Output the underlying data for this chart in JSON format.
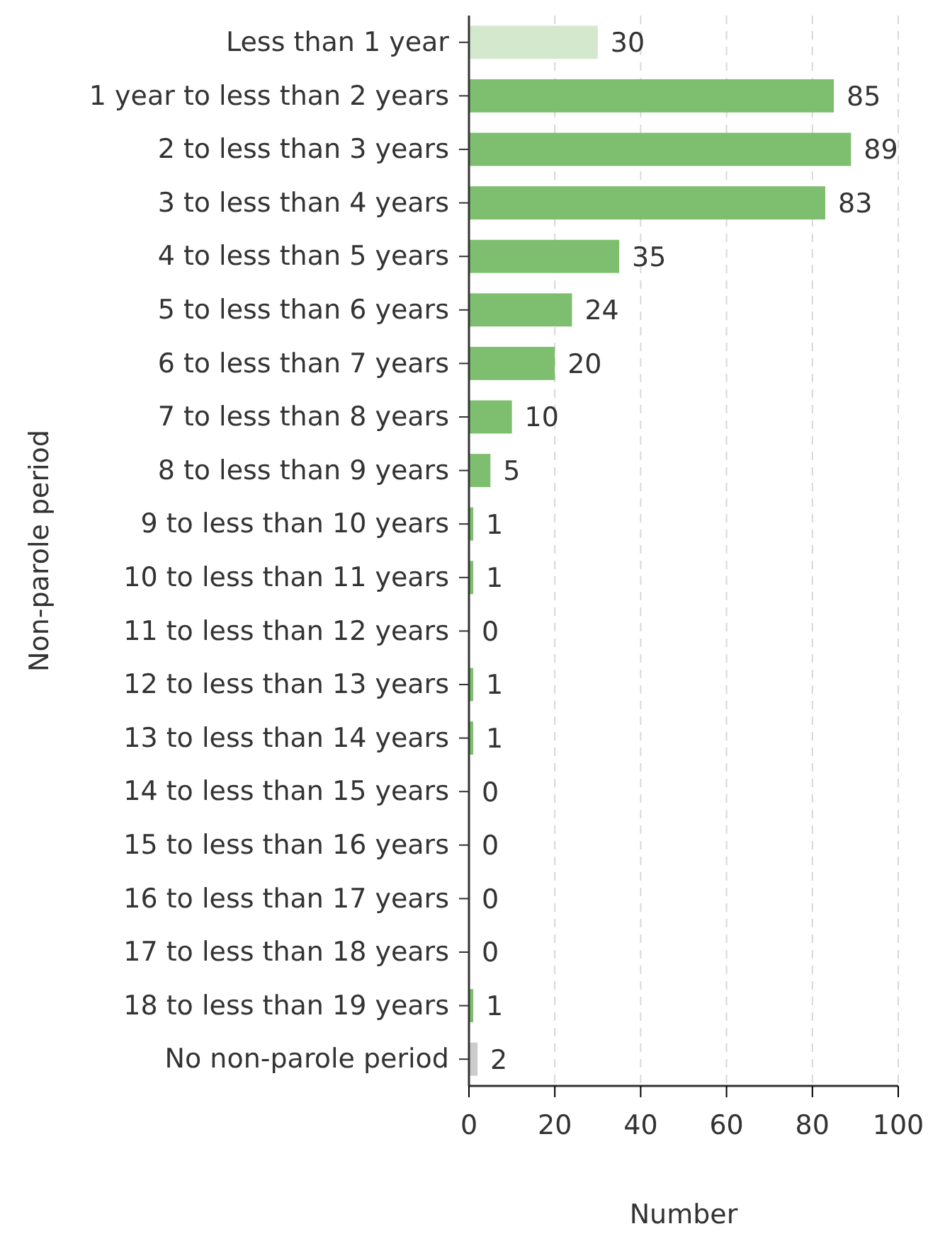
{
  "chart_data": {
    "type": "bar",
    "orientation": "horizontal",
    "xlabel": "Number",
    "ylabel": "Non-parole period",
    "categories": [
      "Less than 1 year",
      "1 year to less than 2 years",
      "2 to less than 3 years",
      "3 to less than 4 years",
      "4 to less than 5 years",
      "5 to less than 6 years",
      "6 to less than 7 years",
      "7 to less than 8 years",
      "8 to less than 9 years",
      "9 to less than 10 years",
      "10 to less than 11 years",
      "11 to less than 12 years",
      "12 to less than 13 years",
      "13 to less than 14 years",
      "14 to less than 15 years",
      "15 to less than 16 years",
      "16 to less than 17 years",
      "17 to less than 18 years",
      "18 to less than 19 years",
      "No non-parole period"
    ],
    "values": [
      30,
      85,
      89,
      83,
      35,
      24,
      20,
      10,
      5,
      1,
      1,
      0,
      1,
      1,
      0,
      0,
      0,
      0,
      1,
      2
    ],
    "colors": [
      "#d3e8cc",
      "#7dbf6e",
      "#7dbf6e",
      "#7dbf6e",
      "#7dbf6e",
      "#7dbf6e",
      "#7dbf6e",
      "#7dbf6e",
      "#7dbf6e",
      "#7dbf6e",
      "#7dbf6e",
      "#7dbf6e",
      "#7dbf6e",
      "#7dbf6e",
      "#7dbf6e",
      "#7dbf6e",
      "#7dbf6e",
      "#7dbf6e",
      "#7dbf6e",
      "#cccccc"
    ],
    "xlim": [
      0,
      100
    ],
    "xticks": [
      0,
      20,
      40,
      60,
      80,
      100
    ],
    "grid": "x",
    "data_labels": true
  }
}
